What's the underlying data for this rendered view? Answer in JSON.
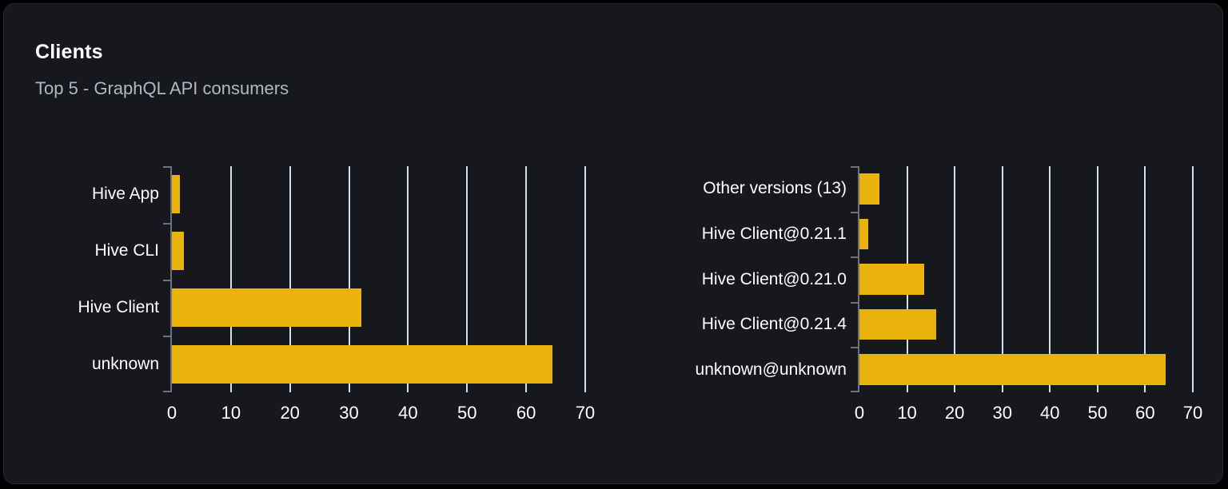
{
  "card": {
    "title": "Clients",
    "subtitle": "Top 5 - GraphQL API consumers"
  },
  "colors": {
    "page_bg": "#000000",
    "card_bg": "#16181d",
    "card_border": "#26292f",
    "title": "#ffffff",
    "subtitle": "#b4b8bf",
    "bar": "#e9b30b",
    "gridline": "#d8dee7",
    "axis": "#6e737b",
    "tick_label": "#ffffff"
  },
  "chart_data": [
    {
      "type": "bar",
      "name": "clients-by-name",
      "orientation": "horizontal",
      "categories": [
        "Hive App",
        "Hive CLI",
        "Hive Client",
        "unknown"
      ],
      "values": [
        1.4,
        2.0,
        32.1,
        64.5
      ],
      "xticks": [
        0,
        10,
        20,
        30,
        40,
        50,
        60,
        70
      ],
      "xlim": [
        0,
        72
      ],
      "xlabel": "",
      "ylabel": "",
      "grid": true,
      "legend": false
    },
    {
      "type": "bar",
      "name": "clients-by-version",
      "orientation": "horizontal",
      "categories": [
        "Other versions (13)",
        "Hive Client@0.21.1",
        "Hive Client@0.21.0",
        "Hive Client@0.21.4",
        "unknown@unknown"
      ],
      "values": [
        4.2,
        1.8,
        13.6,
        16.1,
        64.3
      ],
      "xticks": [
        0,
        10,
        20,
        30,
        40,
        50,
        60,
        70
      ],
      "xlim": [
        0,
        72
      ],
      "xlabel": "",
      "ylabel": "",
      "grid": true,
      "legend": false
    }
  ]
}
